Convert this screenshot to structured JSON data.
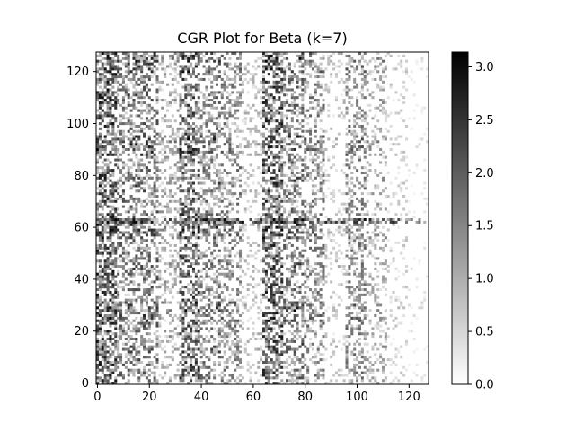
{
  "chart_data": {
    "type": "heatmap",
    "title": "CGR Plot for Beta (k=7)",
    "xlabel": "",
    "ylabel": "",
    "grid_size": 128,
    "xlim": [
      0,
      127
    ],
    "ylim": [
      0,
      127
    ],
    "x_ticks": [
      0,
      20,
      40,
      60,
      80,
      100,
      120
    ],
    "y_ticks": [
      0,
      20,
      40,
      60,
      80,
      100,
      120
    ],
    "colormap": "Greys",
    "colorbar": {
      "range": [
        0.0,
        3.14
      ],
      "ticks": [
        0.0,
        0.5,
        1.0,
        1.5,
        2.0,
        2.5,
        3.0
      ],
      "tick_labels": [
        "0.0",
        "0.5",
        "1.0",
        "1.5",
        "2.0",
        "2.5",
        "3.0"
      ],
      "low_color": "#ffffff",
      "high_color": "#000000"
    },
    "grid": false,
    "values_note": "dense 128x128 log-scaled k-mer frequency matrix; darker = higher; strong darkness in x 0-60 & 64-95, sparse/light x 112-127, distinct dark row near y=63"
  }
}
